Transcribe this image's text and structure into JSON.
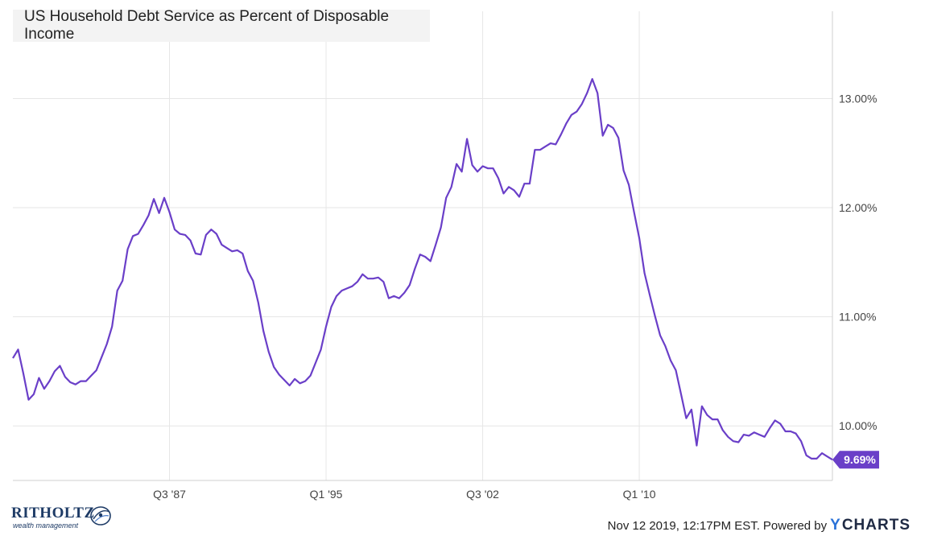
{
  "chart_data": {
    "type": "line",
    "title": "US Household Debt Service as Percent of Disposable Income",
    "y_unit": "%",
    "ylim": [
      9.5,
      13.8
    ],
    "y_ticks": [
      "10.00%",
      "11.00%",
      "12.00%",
      "13.00%"
    ],
    "y_tick_values": [
      10,
      11,
      12,
      13
    ],
    "x_ticks": [
      "Q3 '87",
      "Q1 '95",
      "Q3 '02",
      "Q1 '10"
    ],
    "x_tick_values": [
      "1987Q3",
      "1995Q1",
      "2002Q3",
      "2010Q1"
    ],
    "grid": true,
    "last_value_label": "9.69%",
    "series": [
      {
        "color": "#6a3fc8",
        "points": [
          [
            "1980Q1",
            10.62
          ],
          [
            "1980Q2",
            10.7
          ],
          [
            "1980Q3",
            10.48
          ],
          [
            "1980Q4",
            10.24
          ],
          [
            "1981Q1",
            10.29
          ],
          [
            "1981Q2",
            10.44
          ],
          [
            "1981Q3",
            10.34
          ],
          [
            "1981Q4",
            10.41
          ],
          [
            "1982Q1",
            10.5
          ],
          [
            "1982Q2",
            10.55
          ],
          [
            "1982Q3",
            10.45
          ],
          [
            "1982Q4",
            10.4
          ],
          [
            "1983Q1",
            10.38
          ],
          [
            "1983Q2",
            10.41
          ],
          [
            "1983Q3",
            10.41
          ],
          [
            "1983Q4",
            10.46
          ],
          [
            "1984Q1",
            10.51
          ],
          [
            "1984Q2",
            10.63
          ],
          [
            "1984Q3",
            10.75
          ],
          [
            "1984Q4",
            10.91
          ],
          [
            "1985Q1",
            11.24
          ],
          [
            "1985Q2",
            11.33
          ],
          [
            "1985Q3",
            11.62
          ],
          [
            "1985Q4",
            11.74
          ],
          [
            "1986Q1",
            11.76
          ],
          [
            "1986Q2",
            11.84
          ],
          [
            "1986Q3",
            11.93
          ],
          [
            "1986Q4",
            12.08
          ],
          [
            "1987Q1",
            11.95
          ],
          [
            "1987Q2",
            12.09
          ],
          [
            "1987Q3",
            11.96
          ],
          [
            "1987Q4",
            11.8
          ],
          [
            "1988Q1",
            11.76
          ],
          [
            "1988Q2",
            11.75
          ],
          [
            "1988Q3",
            11.7
          ],
          [
            "1988Q4",
            11.58
          ],
          [
            "1989Q1",
            11.57
          ],
          [
            "1989Q2",
            11.75
          ],
          [
            "1989Q3",
            11.8
          ],
          [
            "1989Q4",
            11.76
          ],
          [
            "1990Q1",
            11.66
          ],
          [
            "1990Q2",
            11.63
          ],
          [
            "1990Q3",
            11.6
          ],
          [
            "1990Q4",
            11.61
          ],
          [
            "1991Q1",
            11.58
          ],
          [
            "1991Q2",
            11.42
          ],
          [
            "1991Q3",
            11.33
          ],
          [
            "1991Q4",
            11.13
          ],
          [
            "1992Q1",
            10.87
          ],
          [
            "1992Q2",
            10.68
          ],
          [
            "1992Q3",
            10.54
          ],
          [
            "1992Q4",
            10.47
          ],
          [
            "1993Q1",
            10.42
          ],
          [
            "1993Q2",
            10.37
          ],
          [
            "1993Q3",
            10.43
          ],
          [
            "1993Q4",
            10.39
          ],
          [
            "1994Q1",
            10.41
          ],
          [
            "1994Q2",
            10.46
          ],
          [
            "1994Q3",
            10.58
          ],
          [
            "1994Q4",
            10.7
          ],
          [
            "1995Q1",
            10.91
          ],
          [
            "1995Q2",
            11.09
          ],
          [
            "1995Q3",
            11.19
          ],
          [
            "1995Q4",
            11.24
          ],
          [
            "1996Q1",
            11.26
          ],
          [
            "1996Q2",
            11.28
          ],
          [
            "1996Q3",
            11.32
          ],
          [
            "1996Q4",
            11.39
          ],
          [
            "1997Q1",
            11.35
          ],
          [
            "1997Q2",
            11.35
          ],
          [
            "1997Q3",
            11.36
          ],
          [
            "1997Q4",
            11.32
          ],
          [
            "1998Q1",
            11.17
          ],
          [
            "1998Q2",
            11.19
          ],
          [
            "1998Q3",
            11.17
          ],
          [
            "1998Q4",
            11.22
          ],
          [
            "1999Q1",
            11.29
          ],
          [
            "1999Q2",
            11.44
          ],
          [
            "1999Q3",
            11.57
          ],
          [
            "1999Q4",
            11.55
          ],
          [
            "2000Q1",
            11.51
          ],
          [
            "2000Q2",
            11.66
          ],
          [
            "2000Q3",
            11.82
          ],
          [
            "2000Q4",
            12.09
          ],
          [
            "2001Q1",
            12.19
          ],
          [
            "2001Q2",
            12.4
          ],
          [
            "2001Q3",
            12.33
          ],
          [
            "2001Q4",
            12.63
          ],
          [
            "2002Q1",
            12.39
          ],
          [
            "2002Q2",
            12.33
          ],
          [
            "2002Q3",
            12.38
          ],
          [
            "2002Q4",
            12.36
          ],
          [
            "2003Q1",
            12.36
          ],
          [
            "2003Q2",
            12.27
          ],
          [
            "2003Q3",
            12.13
          ],
          [
            "2003Q4",
            12.19
          ],
          [
            "2004Q1",
            12.16
          ],
          [
            "2004Q2",
            12.1
          ],
          [
            "2004Q3",
            12.22
          ],
          [
            "2004Q4",
            12.22
          ],
          [
            "2005Q1",
            12.53
          ],
          [
            "2005Q2",
            12.53
          ],
          [
            "2005Q3",
            12.56
          ],
          [
            "2005Q4",
            12.59
          ],
          [
            "2006Q1",
            12.58
          ],
          [
            "2006Q2",
            12.67
          ],
          [
            "2006Q3",
            12.77
          ],
          [
            "2006Q4",
            12.85
          ],
          [
            "2007Q1",
            12.88
          ],
          [
            "2007Q2",
            12.95
          ],
          [
            "2007Q3",
            13.05
          ],
          [
            "2007Q4",
            13.18
          ],
          [
            "2008Q1",
            13.05
          ],
          [
            "2008Q2",
            12.66
          ],
          [
            "2008Q3",
            12.76
          ],
          [
            "2008Q4",
            12.73
          ],
          [
            "2009Q1",
            12.64
          ],
          [
            "2009Q2",
            12.34
          ],
          [
            "2009Q3",
            12.21
          ],
          [
            "2009Q4",
            11.96
          ],
          [
            "2010Q1",
            11.72
          ],
          [
            "2010Q2",
            11.4
          ],
          [
            "2010Q3",
            11.2
          ],
          [
            "2010Q4",
            11.01
          ],
          [
            "2011Q1",
            10.83
          ],
          [
            "2011Q2",
            10.73
          ],
          [
            "2011Q3",
            10.6
          ],
          [
            "2011Q4",
            10.51
          ],
          [
            "2012Q1",
            10.29
          ],
          [
            "2012Q2",
            10.07
          ],
          [
            "2012Q3",
            10.15
          ],
          [
            "2012Q4",
            9.82
          ],
          [
            "2013Q1",
            10.18
          ],
          [
            "2013Q2",
            10.1
          ],
          [
            "2013Q3",
            10.06
          ],
          [
            "2013Q4",
            10.06
          ],
          [
            "2014Q1",
            9.96
          ],
          [
            "2014Q2",
            9.9
          ],
          [
            "2014Q3",
            9.86
          ],
          [
            "2014Q4",
            9.85
          ],
          [
            "2015Q1",
            9.92
          ],
          [
            "2015Q2",
            9.91
          ],
          [
            "2015Q3",
            9.94
          ],
          [
            "2015Q4",
            9.92
          ],
          [
            "2016Q1",
            9.9
          ],
          [
            "2016Q2",
            9.98
          ],
          [
            "2016Q3",
            10.05
          ],
          [
            "2016Q4",
            10.02
          ],
          [
            "2017Q1",
            9.95
          ],
          [
            "2017Q2",
            9.95
          ],
          [
            "2017Q3",
            9.93
          ],
          [
            "2017Q4",
            9.86
          ],
          [
            "2018Q1",
            9.73
          ],
          [
            "2018Q2",
            9.7
          ],
          [
            "2018Q3",
            9.7
          ],
          [
            "2018Q4",
            9.75
          ],
          [
            "2019Q1",
            9.72
          ],
          [
            "2019Q2",
            9.69
          ]
        ]
      }
    ]
  },
  "footer": {
    "brand_name": "RITHOLTZ",
    "brand_sub": "wealth management",
    "timestamp": "Nov 12 2019, 12:17PM EST.",
    "powered_by": "Powered by",
    "ycharts_y": "Y",
    "ycharts_rest": "CHARTS"
  },
  "colors": {
    "line": "#6a3fc8",
    "badge": "#6a3fc8",
    "grid": "#e6e6e6",
    "title_bg": "#f3f3f3"
  },
  "icons": {
    "brand_logo": "ritholtz-emblem-icon",
    "ycharts_logo": "ycharts-logo"
  }
}
